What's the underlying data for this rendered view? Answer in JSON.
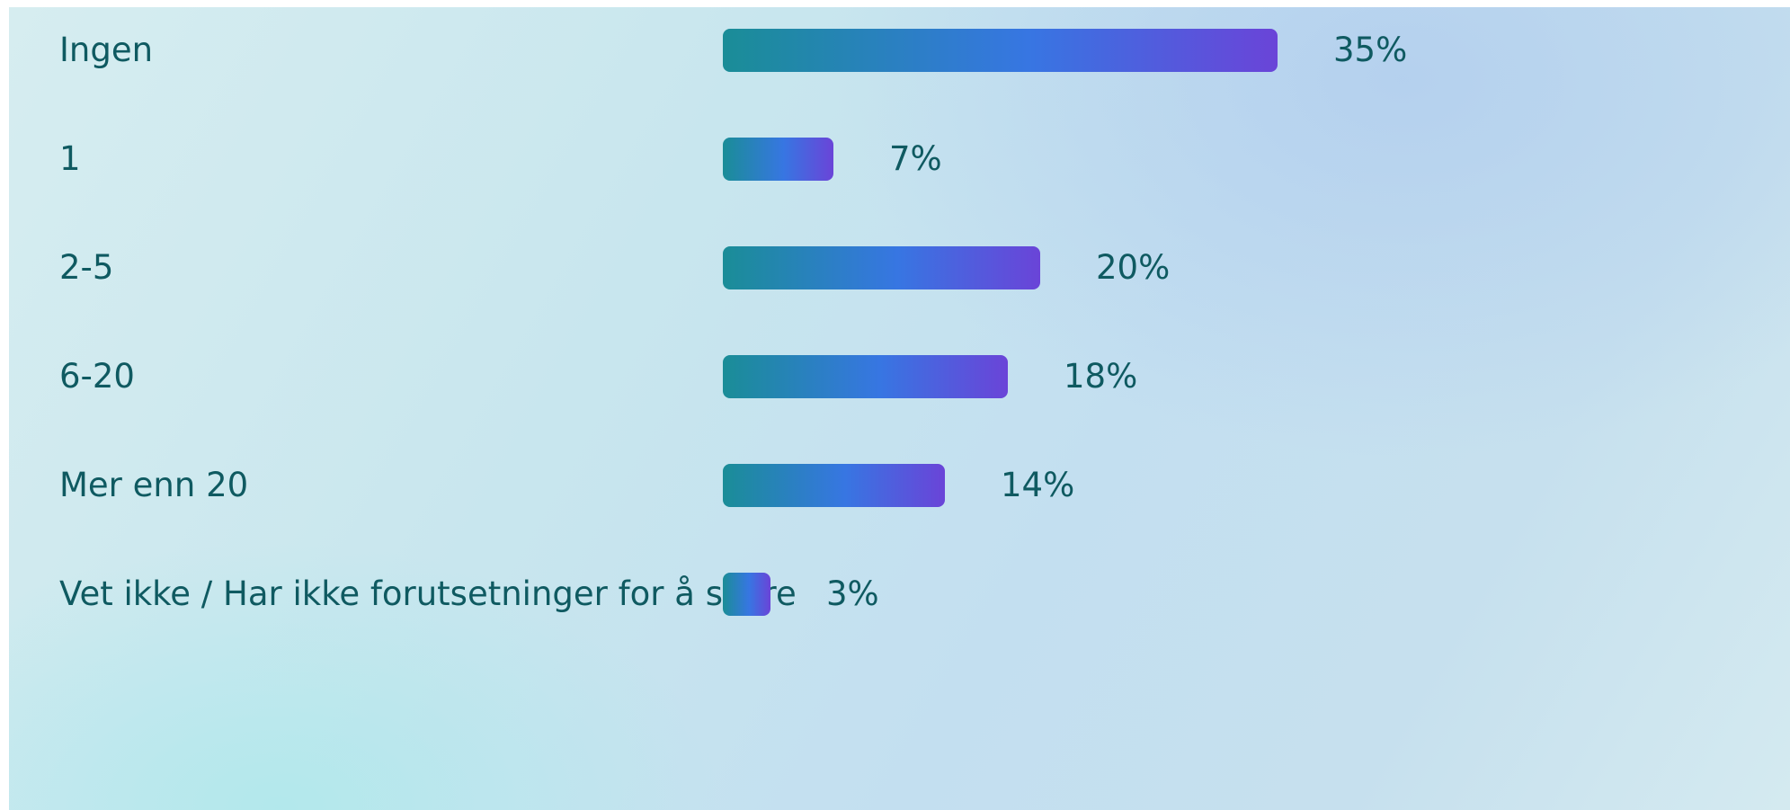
{
  "chart_data": {
    "type": "bar",
    "orientation": "horizontal",
    "categories": [
      "Ingen",
      "1",
      "2-5",
      "6-20",
      "Mer enn 20",
      "Vet ikke / Har ikke forutsetninger for å svare"
    ],
    "values": [
      35,
      7,
      20,
      18,
      14,
      3
    ],
    "value_labels": [
      "35%",
      "7%",
      "20%",
      "18%",
      "14%",
      "3%"
    ],
    "unit": "%",
    "title": "",
    "xlabel": "",
    "ylabel": "",
    "xlim": [
      0,
      35
    ],
    "grid": false,
    "legend": "none",
    "colors": {
      "bar_gradient": [
        "#1a8d97",
        "#3776e2",
        "#6a44d8"
      ],
      "text": "#0f5a61"
    }
  }
}
